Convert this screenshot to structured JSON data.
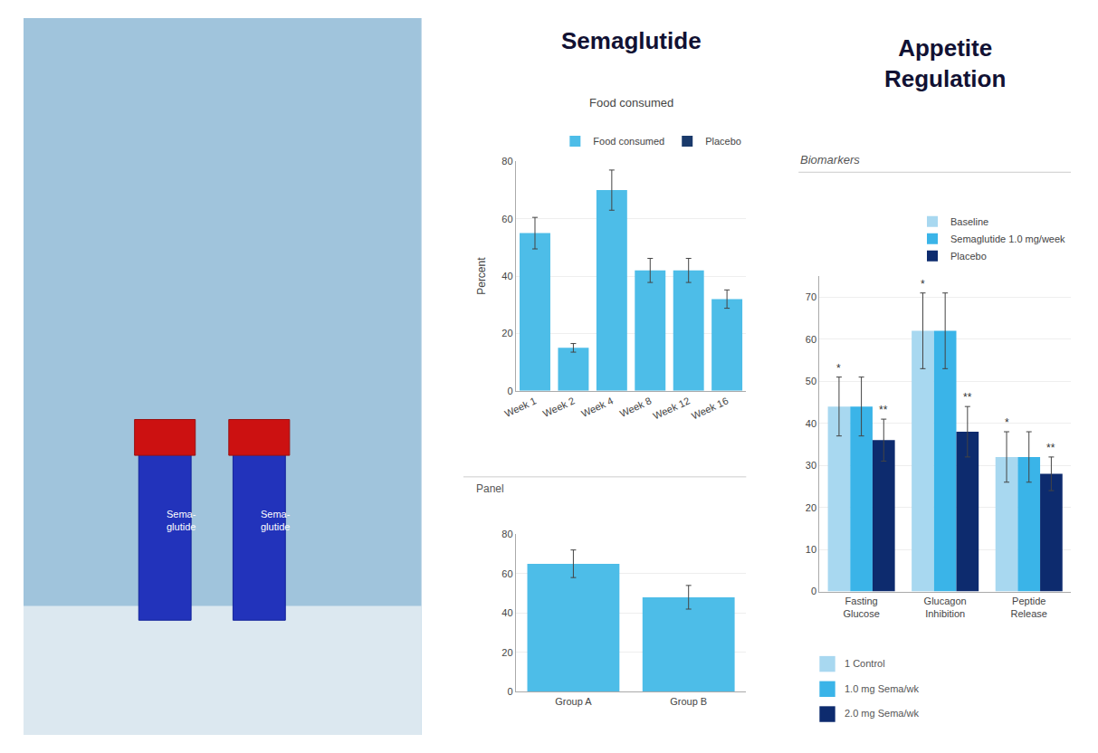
{
  "chart_data": [
    {
      "type": "bar",
      "title": "Semaglutide",
      "subtitle": "Food consumed",
      "ylabel": "Percent",
      "categories": [
        "Week 1",
        "Week 2",
        "Week 4",
        "Week 8",
        "Week 12",
        "Week 16"
      ],
      "series": [
        {
          "name": "Food consumed",
          "color": "#4dbde8",
          "values": [
            55,
            15,
            70,
            42,
            42,
            32
          ],
          "errors": [
            5.5,
            1.5,
            7,
            4.2,
            4.2,
            3.2
          ]
        },
        {
          "name": "Placebo",
          "color": "#1a3a6b",
          "values": [
            null,
            null,
            null,
            null,
            null,
            null
          ]
        }
      ],
      "ylim": [
        0,
        80
      ],
      "yticks": [
        0,
        20,
        40,
        60,
        80
      ],
      "grid": true,
      "legend": "upper right",
      "annotations": [
        "Sema-\nglutide",
        "Sema-\nglutide"
      ]
    },
    {
      "type": "bar",
      "subtitle": "Panel",
      "categories": [
        "Group A",
        "Group B"
      ],
      "values": [
        65,
        48
      ],
      "errors": [
        7,
        6
      ],
      "color": "#4dbde8",
      "ylim": [
        0,
        80
      ],
      "yticks": [
        0,
        20,
        40,
        60,
        80
      ],
      "grid": true
    },
    {
      "type": "bar",
      "title": "Appetite\nRegulation",
      "subtitle": "Biomarkers",
      "categories": [
        "Fasting\nGlucose",
        "Glucagon\nInhibition",
        "Peptide\nRelease"
      ],
      "series": [
        {
          "name": "Baseline",
          "color": "#a8d8f0",
          "values": [
            44,
            62,
            32
          ],
          "errors": [
            7,
            9,
            6
          ]
        },
        {
          "name": "Semaglutide 1.0 mg/week",
          "color": "#3ab4e8",
          "values": [
            44,
            62,
            32
          ],
          "errors": [
            7,
            9,
            6
          ]
        },
        {
          "name": "Placebo",
          "color": "#0d2b6e",
          "values": [
            36,
            38,
            28
          ],
          "errors": [
            5,
            6,
            4
          ]
        }
      ],
      "ylim": [
        0,
        75
      ],
      "yticks": [
        0,
        10,
        20,
        30,
        40,
        50,
        60,
        70
      ],
      "grid": true,
      "legend": "upper right",
      "annotations": [
        {
          "text": "*",
          "category": "Fasting\nGlucose",
          "series": "Baseline"
        },
        {
          "text": "*",
          "category": "Glucagon\nInhibition",
          "series": "Baseline"
        },
        {
          "text": "*",
          "category": "Peptide\nRelease",
          "series": "Baseline"
        },
        {
          "text": "**",
          "category": "Fasting\nGlucose",
          "series": "Placebo"
        },
        {
          "text": "**",
          "category": "Glucagon\nInhibition",
          "series": "Placebo"
        },
        {
          "text": "**",
          "category": "Peptide\nRelease",
          "series": "Placebo"
        },
        {
          "text": "1 Control",
          "color": "#a8d8f0"
        },
        {
          "text": "1.0 mg Sema/wk",
          "color": "#3ab4e8"
        },
        {
          "text": "2.0 mg Sema/wk",
          "color": "#0d2b6e"
        }
      ]
    }
  ]
}
